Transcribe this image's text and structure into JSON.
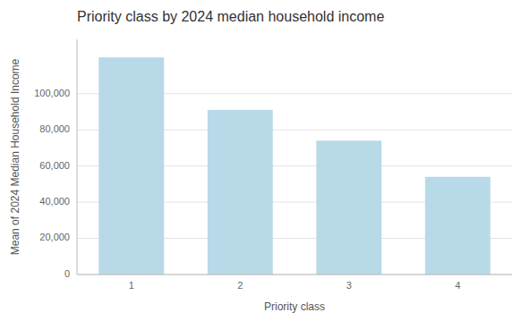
{
  "chart_data": {
    "type": "bar",
    "title": "Priority class by 2024 median household income",
    "xlabel": "Priority class",
    "ylabel": "Mean of 2024 Median Household Income",
    "categories": [
      "1",
      "2",
      "3",
      "4"
    ],
    "values": [
      120000,
      91000,
      74000,
      54000
    ],
    "color": "#b8d9e8",
    "ylim": [
      0,
      130000
    ],
    "yticks": [
      0,
      {
        "value": 20000,
        "label": "20,000"
      },
      {
        "value": 40000,
        "label": "40,000"
      },
      {
        "value": 60000,
        "label": "60,000"
      },
      {
        "value": 80000,
        "label": "80,000"
      },
      {
        "value": 100000,
        "label": "100,000"
      }
    ],
    "grid": true
  }
}
